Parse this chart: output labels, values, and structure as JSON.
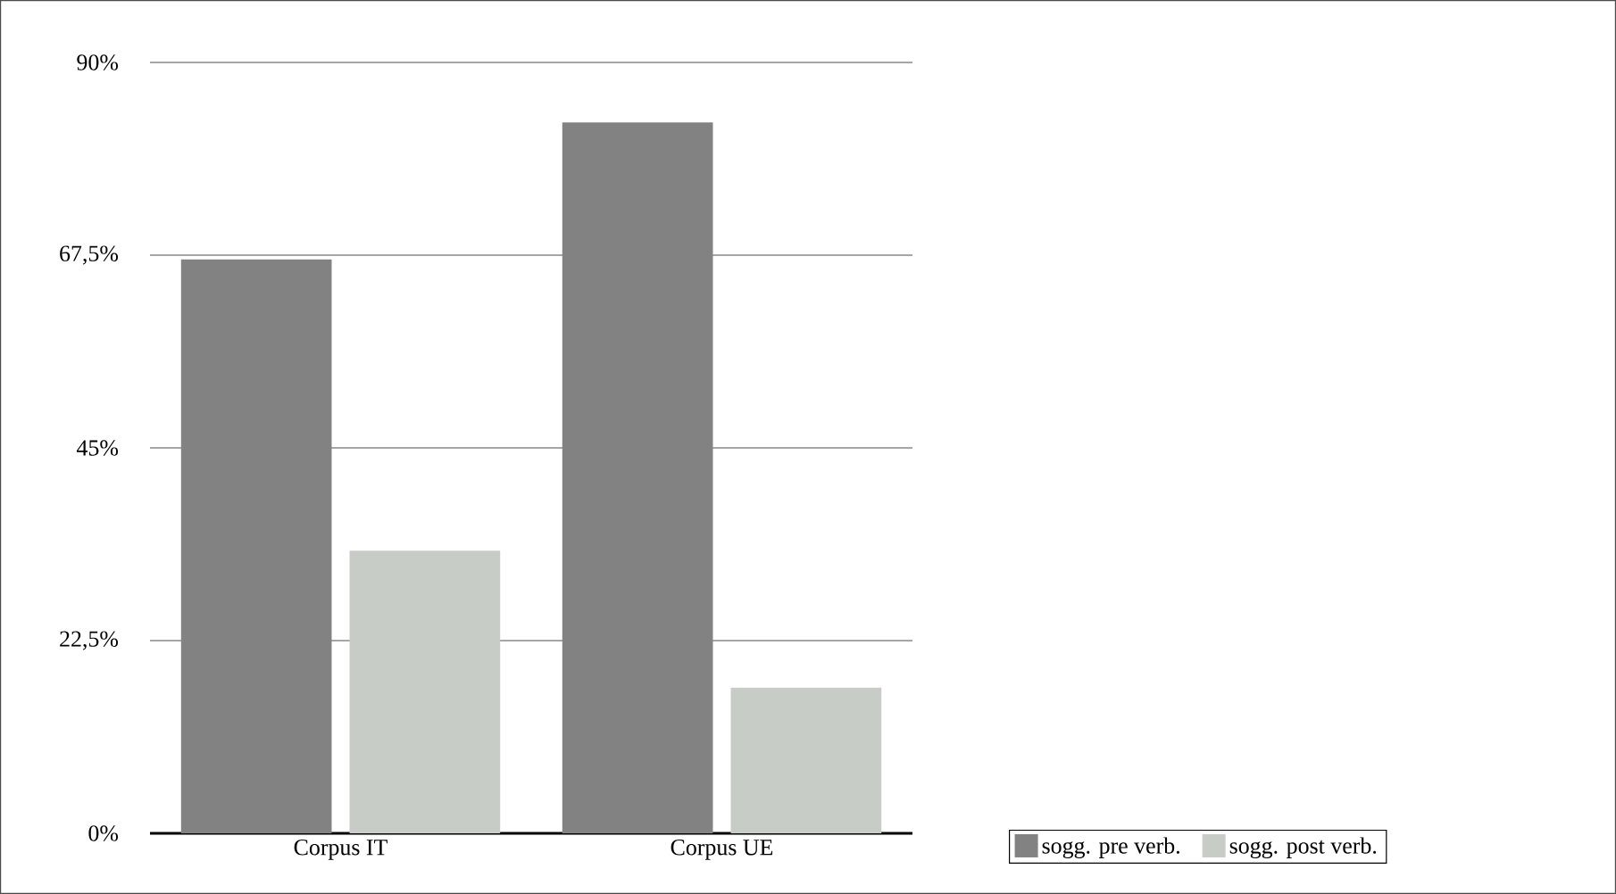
{
  "chart_data": {
    "type": "bar",
    "categories": [
      "Corpus IT",
      "Corpus UE"
    ],
    "series": [
      {
        "name": "sogg. pre verb.",
        "color": "#828282",
        "values": [
          67,
          83
        ]
      },
      {
        "name": "sogg. post verb.",
        "color": "#c8ccc6",
        "values": [
          33,
          17
        ]
      }
    ],
    "ylim": [
      0,
      90
    ],
    "yticks": [
      {
        "value": 0,
        "label": "0%"
      },
      {
        "value": 22.5,
        "label": "22,5%"
      },
      {
        "value": 45,
        "label": "45%"
      },
      {
        "value": 67.5,
        "label": "67,5%"
      },
      {
        "value": 90,
        "label": "90%"
      }
    ],
    "grid": "y",
    "legend": "bottom right"
  }
}
